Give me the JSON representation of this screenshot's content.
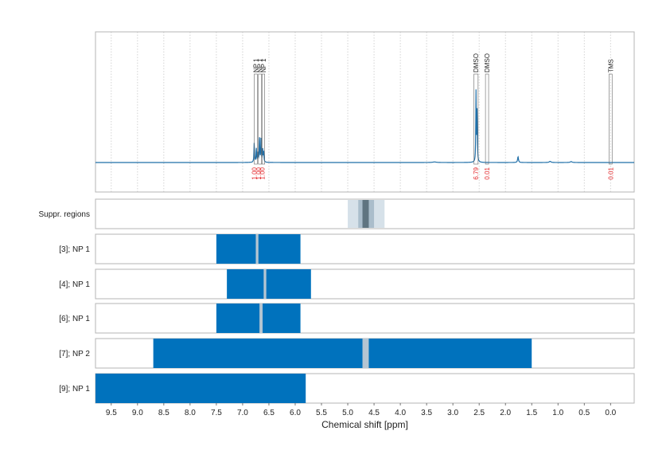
{
  "chart_data": {
    "type": "bar",
    "xlabel": "Chemical shift [ppm]",
    "xlim": [
      9.8,
      -0.45
    ],
    "x_ticks": [
      9.5,
      9.0,
      8.5,
      8.0,
      7.5,
      7.0,
      6.5,
      6.0,
      5.5,
      5.0,
      4.5,
      4.0,
      3.5,
      3.0,
      2.5,
      2.0,
      1.5,
      1.0,
      0.5,
      0.0
    ],
    "x_tick_labels": [
      "9.5",
      "9.0",
      "8.5",
      "8.0",
      "7.5",
      "7.0",
      "6.5",
      "6.0",
      "5.5",
      "5.0",
      "4.5",
      "4.0",
      "3.5",
      "3.0",
      "2.5",
      "2.0",
      "1.5",
      "1.0",
      "0.5",
      "0.0"
    ],
    "grid": true,
    "colors": {
      "spectrum": "#1f6fa8",
      "bar": "#0072bd",
      "gap": "#b4c5d2",
      "suppr_light": "#d6e1e9",
      "suppr_mid": "#aabdcb",
      "suppr_dark": "#5f7480",
      "integral": "#e3262a",
      "grid": "#c8c8c8"
    },
    "spectrum": {
      "baseline_shift_range": [
        9.8,
        -0.45
      ],
      "peaks": [
        {
          "shift": 6.78,
          "height": 0.17,
          "width": 0.006
        },
        {
          "shift": 6.74,
          "height": 0.12,
          "width": 0.006
        },
        {
          "shift": 6.71,
          "height": 0.08,
          "width": 0.006
        },
        {
          "shift": 6.68,
          "height": 0.22,
          "width": 0.006
        },
        {
          "shift": 6.65,
          "height": 0.2,
          "width": 0.006
        },
        {
          "shift": 6.62,
          "height": 0.12,
          "width": 0.006
        },
        {
          "shift": 6.6,
          "height": 0.09,
          "width": 0.006
        },
        {
          "shift": 2.56,
          "height": 0.6,
          "width": 0.005
        },
        {
          "shift": 2.54,
          "height": 0.45,
          "width": 0.006
        },
        {
          "shift": 1.76,
          "height": 0.05,
          "width": 0.01
        },
        {
          "shift": 1.15,
          "height": 0.01,
          "width": 0.02
        },
        {
          "shift": 0.75,
          "height": 0.008,
          "width": 0.02
        },
        {
          "shift": 3.35,
          "height": 0.005,
          "width": 0.04
        }
      ]
    },
    "peak_annotations": [
      {
        "label": "NP 1",
        "x1": 6.78,
        "x2": 6.72
      },
      {
        "label": "NP 1",
        "x1": 6.7,
        "x2": 6.64
      },
      {
        "label": "NP 1",
        "x1": 6.63,
        "x2": 6.58
      },
      {
        "label": "DMSO",
        "x1": 2.6,
        "x2": 2.52
      },
      {
        "label": "DMSO",
        "x1": 2.38,
        "x2": 2.32
      },
      {
        "label": "TMS",
        "x1": 0.03,
        "x2": -0.03
      }
    ],
    "integrals": [
      {
        "x": 6.78,
        "value": "1.00"
      },
      {
        "x": 6.7,
        "value": "1.00"
      },
      {
        "x": 6.63,
        "value": "1.00"
      },
      {
        "x": 2.56,
        "value": "6.79"
      },
      {
        "x": 2.35,
        "value": "0.01"
      },
      {
        "x": 0.0,
        "value": "0.01"
      }
    ],
    "suppressed_regions": {
      "label": "Suppr. regions",
      "bands": [
        {
          "from": 5.0,
          "to": 4.3,
          "level": "light"
        },
        {
          "from": 4.8,
          "to": 4.5,
          "level": "mid"
        },
        {
          "from": 4.72,
          "to": 4.6,
          "level": "dark"
        }
      ]
    },
    "series": [
      {
        "label": "[3]; NP 1",
        "from": 7.5,
        "to": 5.9,
        "gaps": [
          [
            6.75,
            6.7
          ]
        ]
      },
      {
        "label": "[4]; NP 1",
        "from": 7.3,
        "to": 5.7,
        "gaps": [
          [
            6.6,
            6.55
          ]
        ]
      },
      {
        "label": "[6]; NP 1",
        "from": 7.5,
        "to": 5.9,
        "gaps": [
          [
            6.68,
            6.62
          ]
        ]
      },
      {
        "label": "[7]; NP 2",
        "from": 8.7,
        "to": 1.5,
        "gaps": [
          [
            4.72,
            4.6
          ]
        ]
      },
      {
        "label": "[9]; NP 1",
        "from": 9.8,
        "to": 5.8,
        "gaps": []
      }
    ]
  }
}
